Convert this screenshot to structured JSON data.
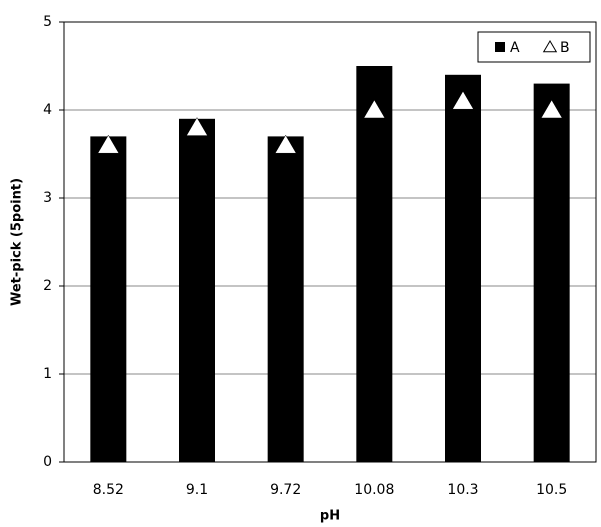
{
  "chart_data": {
    "type": "bar",
    "x_label": "pH",
    "y_label": "Wet-pick (5point)",
    "categories": [
      "8.52",
      "9.1",
      "9.72",
      "10.08",
      "10.3",
      "10.5"
    ],
    "series": [
      {
        "name": "A",
        "type": "bar",
        "color": "#000000",
        "values": [
          3.7,
          3.9,
          3.7,
          4.5,
          4.4,
          4.3
        ]
      },
      {
        "name": "B",
        "type": "triangle",
        "color": "#ffffff",
        "values": [
          3.6,
          3.8,
          3.6,
          4.0,
          4.1,
          4.0
        ]
      }
    ],
    "ylim": [
      0,
      5
    ],
    "yticks": [
      0,
      1,
      2,
      3,
      4,
      5
    ],
    "grid": true,
    "legend": "top-right"
  }
}
